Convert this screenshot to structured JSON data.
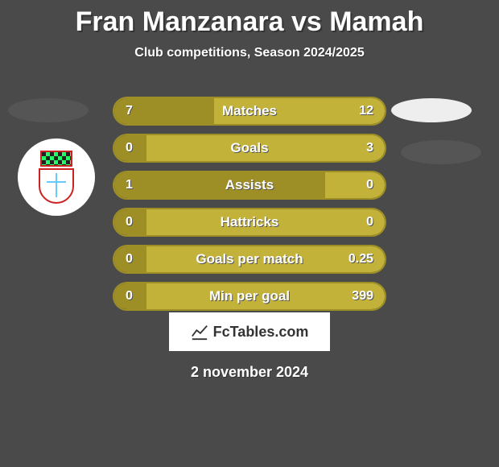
{
  "title": "Fran Manzanara vs Mamah",
  "subtitle": "Club competitions, Season 2024/2025",
  "watermark": "FcTables.com",
  "date": "2 november 2024",
  "colors": {
    "bg": "#4a4a4a",
    "border": "#9e8e26",
    "segA": "#9e8e26",
    "segB": "#c2b23a",
    "flag_left": "#555555",
    "flag_right": "#eeeeee"
  },
  "bars": [
    {
      "label": "Matches",
      "left": "7",
      "right": "12",
      "leftFrac": 0.368
    },
    {
      "label": "Goals",
      "left": "0",
      "right": "3",
      "leftFrac": 0.12
    },
    {
      "label": "Assists",
      "left": "1",
      "right": "0",
      "leftFrac": 0.78
    },
    {
      "label": "Hattricks",
      "left": "0",
      "right": "0",
      "leftFrac": 0.12
    },
    {
      "label": "Goals per match",
      "left": "0",
      "right": "0.25",
      "leftFrac": 0.12
    },
    {
      "label": "Min per goal",
      "left": "0",
      "right": "399",
      "leftFrac": 0.12
    }
  ]
}
